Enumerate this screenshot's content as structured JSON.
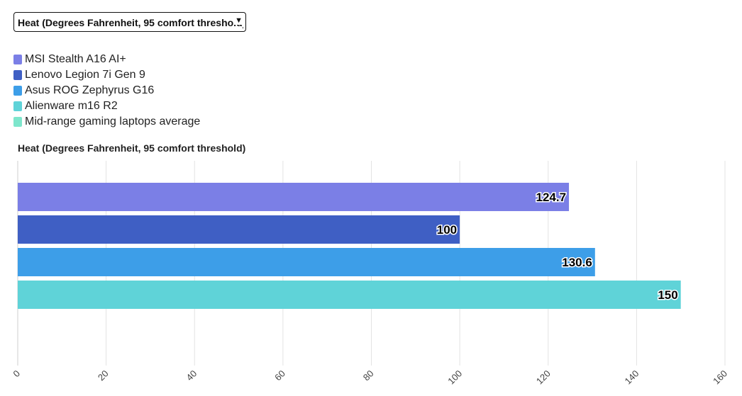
{
  "dropdown": {
    "selected": "Heat (Degrees Fahrenheit, 95 comfort threshold)"
  },
  "legend": [
    {
      "label": "MSI Stealth A16 AI+",
      "color": "#7b7fe6"
    },
    {
      "label": "Lenovo Legion 7i Gen 9",
      "color": "#3f5fc4"
    },
    {
      "label": "Asus ROG Zephyrus G16",
      "color": "#3d9ee8"
    },
    {
      "label": "Alienware m16 R2",
      "color": "#5fd3d8"
    },
    {
      "label": "Mid-range gaming laptops average",
      "color": "#7ee6cc"
    }
  ],
  "chart_data": {
    "type": "bar",
    "orientation": "horizontal",
    "title": "Heat (Degrees Fahrenheit, 95 comfort threshold)",
    "categories": [
      "MSI Stealth A16 AI+",
      "Lenovo Legion 7i Gen 9",
      "Asus ROG Zephyrus G16",
      "Alienware m16 R2",
      "Mid-range gaming laptops average"
    ],
    "values": [
      124.7,
      100,
      130.6,
      150,
      null
    ],
    "colors": [
      "#7b7fe6",
      "#3f5fc4",
      "#3d9ee8",
      "#5fd3d8",
      "#7ee6cc"
    ],
    "value_labels": [
      "124.7",
      "100",
      "130.6",
      "150",
      ""
    ],
    "xlim": [
      0,
      160
    ],
    "xticks": [
      0,
      20,
      40,
      60,
      80,
      100,
      120,
      140,
      160
    ],
    "xtick_labels": [
      "0",
      "20",
      "40",
      "60",
      "80",
      "100",
      "120",
      "140",
      "160"
    ],
    "grid": true
  }
}
